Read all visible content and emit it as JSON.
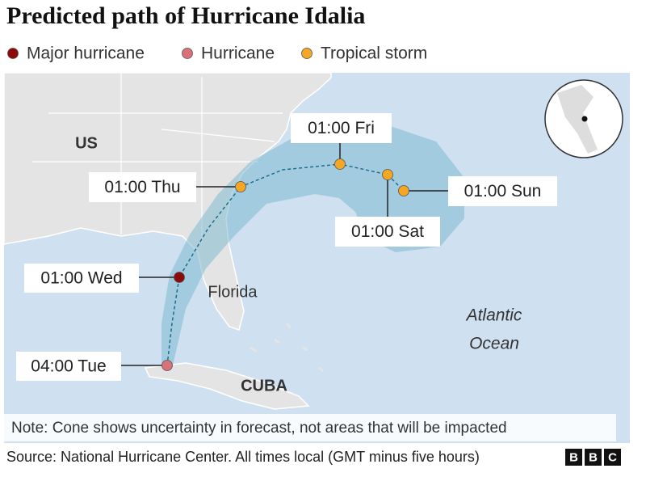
{
  "title": "Predicted path of Hurricane Idalia",
  "legend": [
    {
      "label": "Major hurricane",
      "color": "#8c0a0a"
    },
    {
      "label": "Hurricane",
      "color": "#d9717a"
    },
    {
      "label": "Tropical storm",
      "color": "#f5a623"
    }
  ],
  "track": [
    {
      "label": "04:00 Tue",
      "category": 1
    },
    {
      "label": "01:00 Wed",
      "category": 0
    },
    {
      "label": "01:00 Thu",
      "category": 2
    },
    {
      "label": "01:00 Fri",
      "category": 2
    },
    {
      "label": "01:00 Sat",
      "category": 2
    },
    {
      "label": "01:00 Sun",
      "category": 2
    }
  ],
  "places": [
    "US",
    "Florida",
    "CUBA",
    "Atlantic",
    "Ocean"
  ],
  "note": "Note: Cone shows uncertainty in forecast, not areas that will be impacted",
  "source": "Source: National Hurricane Center. All times local (GMT minus five hours)",
  "logo": [
    "B",
    "B",
    "C"
  ]
}
